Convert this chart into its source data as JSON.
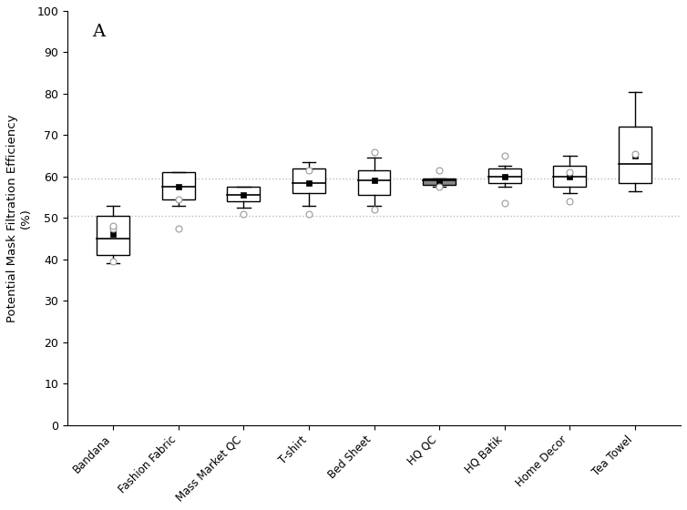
{
  "categories": [
    "Bandana",
    "Fashion Fabric",
    "Mass Market QC",
    "T-shirt",
    "Bed Sheet",
    "HQ QC",
    "HQ Batik",
    "Home Decor",
    "Tea Towel"
  ],
  "ylabel": "Potential Mask Filtration Efficiency\n(%)",
  "ylim": [
    0,
    100
  ],
  "yticks": [
    0,
    10,
    20,
    30,
    40,
    50,
    60,
    70,
    80,
    90,
    100
  ],
  "annotation": "A",
  "hline1": 59.5,
  "hline2": 50.5,
  "hline_color": "#bbbbbb",
  "boxes": [
    {
      "label": "Bandana",
      "q1": 41.0,
      "median": 45.0,
      "q3": 50.5,
      "whislo": 39.0,
      "whishi": 53.0,
      "mean": 46.0,
      "fliers": [
        47.5,
        48.0,
        39.5
      ],
      "facecolor": "white"
    },
    {
      "label": "Fashion Fabric",
      "q1": 54.5,
      "median": 57.5,
      "q3": 61.0,
      "whislo": 53.0,
      "whishi": 61.0,
      "mean": 57.5,
      "fliers": [
        54.5,
        47.5
      ],
      "facecolor": "white"
    },
    {
      "label": "Mass Market QC",
      "q1": 54.0,
      "median": 55.5,
      "q3": 57.5,
      "whislo": 52.5,
      "whishi": 57.5,
      "mean": 55.5,
      "fliers": [
        51.0
      ],
      "facecolor": "white"
    },
    {
      "label": "T-shirt",
      "q1": 56.0,
      "median": 58.5,
      "q3": 62.0,
      "whislo": 53.0,
      "whishi": 63.5,
      "mean": 58.5,
      "fliers": [
        61.5,
        51.0
      ],
      "facecolor": "white"
    },
    {
      "label": "Bed Sheet",
      "q1": 55.5,
      "median": 59.0,
      "q3": 61.5,
      "whislo": 53.0,
      "whishi": 64.5,
      "mean": 59.0,
      "fliers": [
        66.0,
        52.0
      ],
      "facecolor": "white"
    },
    {
      "label": "HQ QC",
      "q1": 58.0,
      "median": 59.0,
      "q3": 59.5,
      "whislo": 57.5,
      "whishi": 59.5,
      "mean": 58.5,
      "fliers": [
        61.5,
        57.5
      ],
      "facecolor": "#888888"
    },
    {
      "label": "HQ Batik",
      "q1": 58.5,
      "median": 60.0,
      "q3": 62.0,
      "whislo": 57.5,
      "whishi": 62.5,
      "mean": 60.0,
      "fliers": [
        53.5,
        65.0
      ],
      "facecolor": "white"
    },
    {
      "label": "Home Decor",
      "q1": 57.5,
      "median": 60.0,
      "q3": 62.5,
      "whislo": 56.0,
      "whishi": 65.0,
      "mean": 60.0,
      "fliers": [
        54.0,
        61.0
      ],
      "facecolor": "white"
    },
    {
      "label": "Tea Towel",
      "q1": 58.5,
      "median": 63.0,
      "q3": 72.0,
      "whislo": 56.5,
      "whishi": 80.5,
      "mean": 65.0,
      "fliers": [
        65.5
      ],
      "facecolor": "white"
    }
  ]
}
